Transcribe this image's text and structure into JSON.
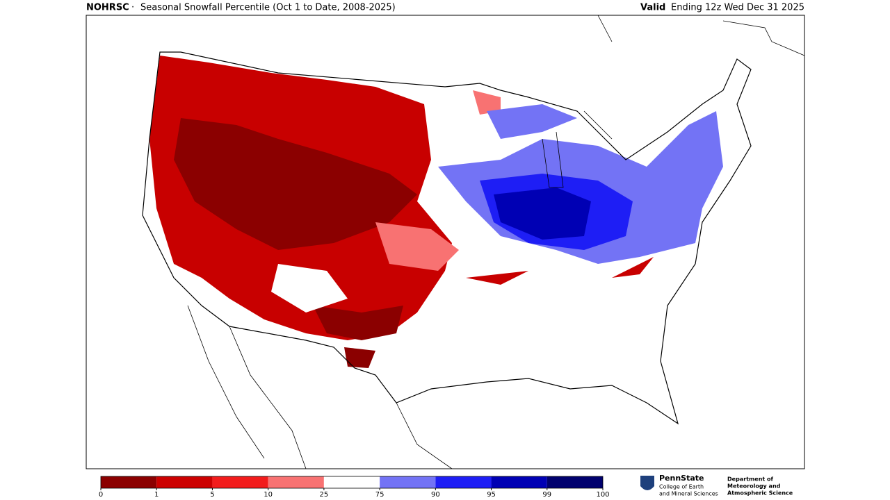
{
  "header": {
    "source": "NOHRSC",
    "separator": "·",
    "title": "Seasonal Snowfall Percentile (Oct 1 to Date, 2008-2025)",
    "valid_label": "Valid",
    "valid_text": "Ending 12z Wed Dec 31 2025"
  },
  "colorbar": {
    "ticks": [
      0,
      1,
      5,
      10,
      25,
      75,
      90,
      95,
      99,
      100
    ],
    "colors": [
      "#8b0000",
      "#cc0000",
      "#f21c1c",
      "#f87272",
      "#ffffff",
      "#7373f5",
      "#1e1ef5",
      "#0000b4",
      "#00006e"
    ]
  },
  "logo": {
    "university": "PennState",
    "college": [
      "College of Earth",
      "and Mineral Sciences"
    ],
    "department": [
      "Department of",
      "Meteorology and",
      "Atmospheric Science"
    ]
  }
}
